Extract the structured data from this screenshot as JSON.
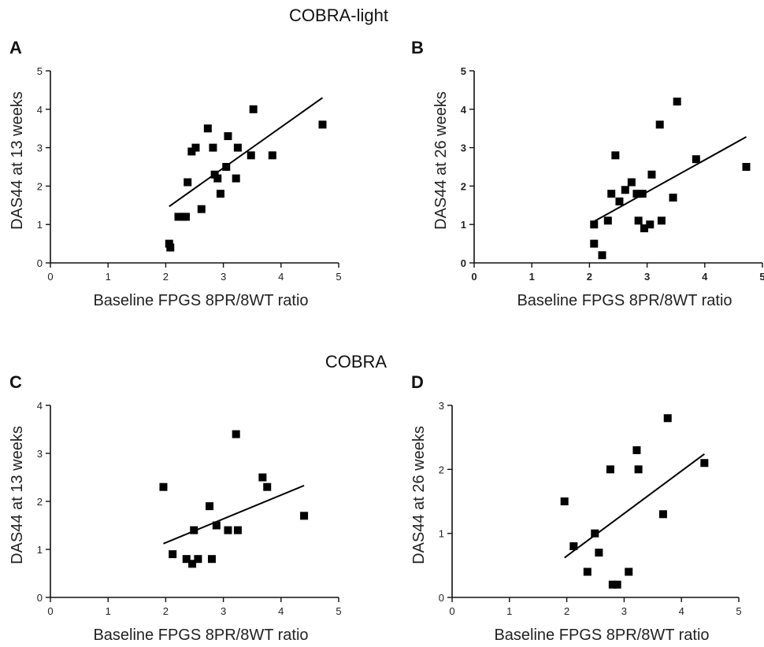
{
  "group_titles": [
    "COBRA-light",
    "COBRA"
  ],
  "chart_data": [
    {
      "type": "scatter",
      "panel": "A",
      "xlabel": "Baseline FPGS 8PR/8WT ratio",
      "ylabel": "DAS44 at 13 weeks",
      "xlim": [
        0,
        5
      ],
      "ylim": [
        0,
        5
      ],
      "xticks": [
        "0",
        "1",
        "2",
        "3",
        "4",
        "5"
      ],
      "yticks": [
        "0",
        "1",
        "2",
        "3",
        "4",
        "5"
      ],
      "points": [
        {
          "x": 2.06,
          "y": 0.5
        },
        {
          "x": 2.08,
          "y": 0.4
        },
        {
          "x": 2.22,
          "y": 1.2
        },
        {
          "x": 2.3,
          "y": 1.2
        },
        {
          "x": 2.35,
          "y": 1.2
        },
        {
          "x": 2.38,
          "y": 2.1
        },
        {
          "x": 2.45,
          "y": 2.9
        },
        {
          "x": 2.52,
          "y": 3.0
        },
        {
          "x": 2.62,
          "y": 1.4
        },
        {
          "x": 2.73,
          "y": 3.5
        },
        {
          "x": 2.82,
          "y": 3.0
        },
        {
          "x": 2.85,
          "y": 2.3
        },
        {
          "x": 2.9,
          "y": 2.2
        },
        {
          "x": 2.95,
          "y": 1.8
        },
        {
          "x": 3.05,
          "y": 2.5
        },
        {
          "x": 3.08,
          "y": 3.3
        },
        {
          "x": 3.22,
          "y": 2.2
        },
        {
          "x": 3.25,
          "y": 3.0
        },
        {
          "x": 3.48,
          "y": 2.8
        },
        {
          "x": 3.52,
          "y": 4.0
        },
        {
          "x": 3.85,
          "y": 2.8
        },
        {
          "x": 4.72,
          "y": 3.6
        }
      ],
      "fit": {
        "x": [
          2.06,
          4.72
        ],
        "y": [
          1.47,
          4.3
        ]
      }
    },
    {
      "type": "scatter",
      "panel": "B",
      "xlabel": "Baseline FPGS 8PR/8WT ratio",
      "ylabel": "DAS44 at 26 weeks",
      "xlim": [
        0,
        5
      ],
      "ylim": [
        0,
        5
      ],
      "xticks": [
        "0",
        "1",
        "2",
        "3",
        "4",
        "5"
      ],
      "yticks": [
        "0",
        "1",
        "2",
        "3",
        "4",
        "5"
      ],
      "points": [
        {
          "x": 2.08,
          "y": 1.0
        },
        {
          "x": 2.08,
          "y": 0.5
        },
        {
          "x": 2.22,
          "y": 0.2
        },
        {
          "x": 2.32,
          "y": 1.1
        },
        {
          "x": 2.38,
          "y": 1.8
        },
        {
          "x": 2.45,
          "y": 2.8
        },
        {
          "x": 2.52,
          "y": 1.6
        },
        {
          "x": 2.62,
          "y": 1.9
        },
        {
          "x": 2.73,
          "y": 2.1
        },
        {
          "x": 2.82,
          "y": 1.8
        },
        {
          "x": 2.85,
          "y": 1.1
        },
        {
          "x": 2.92,
          "y": 1.8
        },
        {
          "x": 2.95,
          "y": 0.9
        },
        {
          "x": 3.05,
          "y": 1.0
        },
        {
          "x": 3.08,
          "y": 2.3
        },
        {
          "x": 3.22,
          "y": 3.6
        },
        {
          "x": 3.25,
          "y": 1.1
        },
        {
          "x": 3.45,
          "y": 1.7
        },
        {
          "x": 3.52,
          "y": 4.2
        },
        {
          "x": 3.85,
          "y": 2.7
        },
        {
          "x": 4.72,
          "y": 2.5
        }
      ],
      "fit": {
        "x": [
          2.08,
          4.72
        ],
        "y": [
          1.08,
          3.28
        ]
      }
    },
    {
      "type": "scatter",
      "panel": "C",
      "xlabel": "Baseline FPGS 8PR/8WT ratio",
      "ylabel": "DAS44 at 13 weeks",
      "xlim": [
        0,
        5
      ],
      "ylim": [
        0,
        4
      ],
      "xticks": [
        "0",
        "1",
        "2",
        "3",
        "4",
        "5"
      ],
      "yticks": [
        "0",
        "1",
        "2",
        "3",
        "4"
      ],
      "points": [
        {
          "x": 1.96,
          "y": 2.3
        },
        {
          "x": 2.12,
          "y": 0.9
        },
        {
          "x": 2.36,
          "y": 0.8
        },
        {
          "x": 2.46,
          "y": 0.7
        },
        {
          "x": 2.49,
          "y": 1.4
        },
        {
          "x": 2.56,
          "y": 0.8
        },
        {
          "x": 2.76,
          "y": 1.9
        },
        {
          "x": 2.8,
          "y": 0.8
        },
        {
          "x": 2.88,
          "y": 1.5
        },
        {
          "x": 3.08,
          "y": 1.4
        },
        {
          "x": 3.22,
          "y": 3.4
        },
        {
          "x": 3.25,
          "y": 1.4
        },
        {
          "x": 3.68,
          "y": 2.5
        },
        {
          "x": 3.76,
          "y": 2.3
        },
        {
          "x": 4.4,
          "y": 1.7
        }
      ],
      "fit": {
        "x": [
          1.96,
          4.4
        ],
        "y": [
          1.12,
          2.33
        ]
      }
    },
    {
      "type": "scatter",
      "panel": "D",
      "xlabel": "Baseline FPGS 8PR/8WT ratio",
      "ylabel": "DAS44 at 26 weeks",
      "xlim": [
        0,
        5
      ],
      "ylim": [
        0,
        3
      ],
      "xticks": [
        "0",
        "1",
        "2",
        "3",
        "4",
        "5"
      ],
      "yticks": [
        "0",
        "1",
        "2",
        "3"
      ],
      "points": [
        {
          "x": 1.96,
          "y": 1.5
        },
        {
          "x": 2.12,
          "y": 0.8
        },
        {
          "x": 2.36,
          "y": 0.4
        },
        {
          "x": 2.49,
          "y": 1.0
        },
        {
          "x": 2.56,
          "y": 0.7
        },
        {
          "x": 2.76,
          "y": 2.0
        },
        {
          "x": 2.8,
          "y": 0.2
        },
        {
          "x": 2.88,
          "y": 0.2
        },
        {
          "x": 3.08,
          "y": 0.4
        },
        {
          "x": 3.22,
          "y": 2.3
        },
        {
          "x": 3.25,
          "y": 2.0
        },
        {
          "x": 3.68,
          "y": 1.3
        },
        {
          "x": 3.76,
          "y": 2.8
        },
        {
          "x": 4.4,
          "y": 2.1
        }
      ],
      "fit": {
        "x": [
          1.96,
          4.4
        ],
        "y": [
          0.62,
          2.24
        ]
      }
    }
  ]
}
